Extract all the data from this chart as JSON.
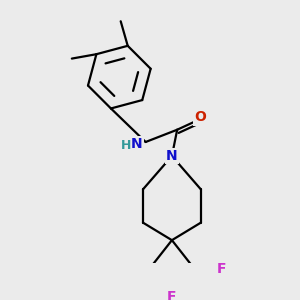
{
  "background_color": "#ebebeb",
  "bond_width": 1.6,
  "fig_size": [
    3.0,
    3.0
  ],
  "dpi": 100,
  "colors": {
    "N": "#1010cc",
    "O": "#cc2200",
    "F": "#cc33cc",
    "H": "#339999",
    "C": "#000000",
    "bond": "#000000"
  },
  "font_size_atom": 10
}
